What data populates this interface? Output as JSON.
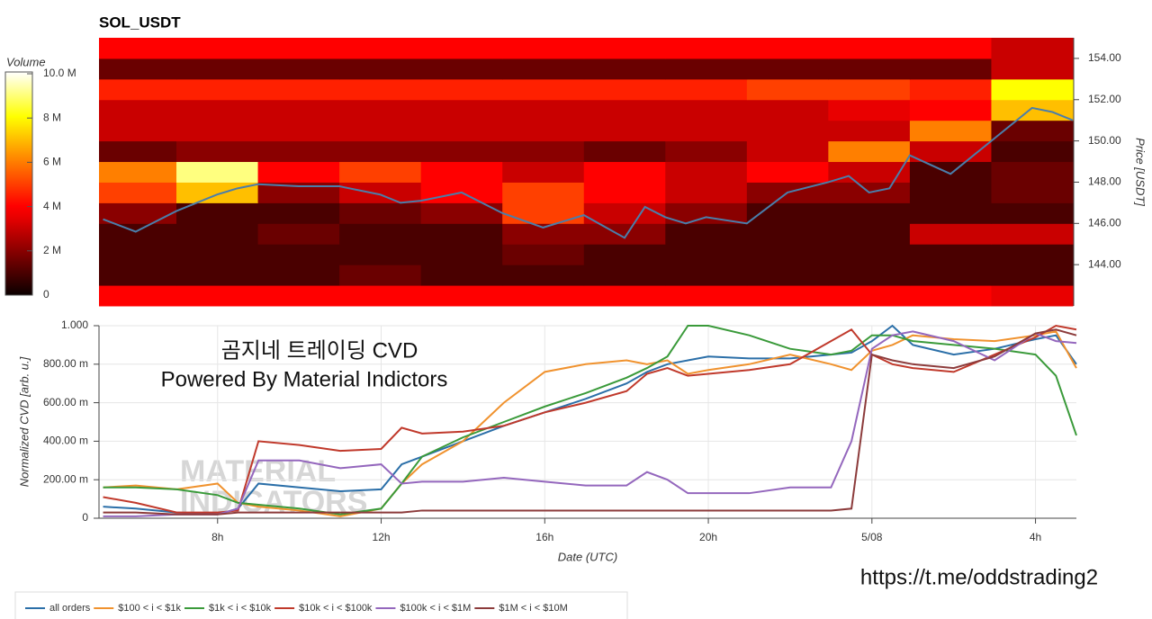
{
  "chart_data": [
    {
      "type": "heatmap",
      "title": "SOL_USDT",
      "y_label": "Price [USDT]",
      "colorbar_title": "Volume",
      "xlim": [
        5.1,
        29
      ],
      "ylim": [
        142,
        155
      ],
      "yticks": [
        {
          "value": 144,
          "label": "144.00"
        },
        {
          "value": 146,
          "label": "146.00"
        },
        {
          "value": 148,
          "label": "148.00"
        },
        {
          "value": 150,
          "label": "150.00"
        },
        {
          "value": 152,
          "label": "152.00"
        },
        {
          "value": 154,
          "label": "154.00"
        }
      ],
      "time_bins": [
        5.1,
        7,
        9,
        11,
        13,
        15,
        17,
        19,
        21,
        23,
        25,
        27,
        29
      ],
      "price_bins": [
        142,
        143,
        144,
        145,
        146,
        147,
        148,
        149,
        150,
        151,
        152,
        153,
        154,
        155
      ],
      "values": [
        [
          4,
          4,
          4,
          4,
          4,
          4,
          4,
          4,
          4,
          4,
          4,
          3.5
        ],
        [
          1,
          1,
          1,
          1.5,
          1,
          1,
          1,
          1,
          1,
          1,
          1,
          1
        ],
        [
          1,
          1,
          1,
          1,
          1,
          1.5,
          1,
          1,
          1,
          1,
          1,
          1
        ],
        [
          1,
          1,
          1.5,
          1,
          1,
          2,
          2,
          1,
          1,
          1,
          3,
          3
        ],
        [
          2,
          1,
          1,
          1.5,
          2,
          5,
          3,
          2,
          1,
          1,
          1,
          1
        ],
        [
          5,
          7,
          2,
          3,
          4,
          5,
          4,
          3,
          2,
          2,
          1,
          1.5
        ],
        [
          6,
          9,
          4,
          5,
          4,
          3,
          4,
          3,
          4,
          3,
          1,
          1.5
        ],
        [
          1.5,
          2,
          2,
          2,
          2,
          2,
          1.5,
          2,
          3,
          6,
          3,
          1
        ],
        [
          3,
          3,
          3,
          3,
          3,
          3,
          3,
          3,
          3,
          3,
          6,
          1.5
        ],
        [
          3,
          3,
          3,
          3,
          3,
          3,
          3,
          3,
          3,
          3.5,
          4,
          7
        ],
        [
          4.5,
          4.5,
          4.5,
          4.5,
          4.5,
          4.5,
          4.5,
          4.5,
          5,
          5,
          4.5,
          8
        ],
        [
          1.5,
          1.5,
          1.5,
          1.5,
          1.5,
          1.5,
          1.5,
          1.5,
          1.5,
          1.5,
          1.5,
          3
        ],
        [
          4,
          4,
          4,
          4,
          4,
          4,
          4,
          4,
          4,
          4,
          4,
          3
        ]
      ],
      "colorbar_lim": [
        0,
        10
      ],
      "colorbar_ticks": [
        0,
        {
          "value": 2,
          "label": "2 M"
        },
        {
          "value": 4,
          "label": "4 M"
        },
        {
          "value": 6,
          "label": "6 M"
        },
        {
          "value": 8,
          "label": "8 M"
        },
        {
          "value": 10,
          "label": "10.0 M"
        }
      ],
      "price_line": {
        "color": "#4a7eaa",
        "x": [
          5.2,
          6,
          7,
          8,
          8.5,
          9,
          10,
          11,
          12,
          12.5,
          13,
          14,
          15,
          16,
          17,
          18,
          18.5,
          19,
          19.5,
          20,
          21,
          22,
          23,
          23.5,
          24,
          24.5,
          25,
          26,
          27,
          28,
          28.5,
          29
        ],
        "values": [
          146.2,
          145.6,
          146.6,
          147.4,
          147.7,
          147.9,
          147.8,
          147.8,
          147.4,
          147.0,
          147.1,
          147.5,
          146.5,
          145.8,
          146.4,
          145.3,
          146.8,
          146.3,
          146.0,
          146.3,
          146.0,
          147.5,
          148.0,
          148.3,
          147.5,
          147.7,
          149.3,
          148.4,
          150.0,
          151.6,
          151.4,
          151.0
        ]
      }
    },
    {
      "type": "line",
      "x_label": "Date (UTC)",
      "y_label": "Normalized CVD [arb. u.]",
      "xlim": [
        5.1,
        29
      ],
      "ylim": [
        0,
        1
      ],
      "grid": true,
      "xticks": [
        {
          "value": 8,
          "label": "8h"
        },
        {
          "value": 12,
          "label": "12h"
        },
        {
          "value": 16,
          "label": "16h"
        },
        {
          "value": 20,
          "label": "20h"
        },
        {
          "value": 24,
          "label": "5/08"
        },
        {
          "value": 28,
          "label": "4h"
        }
      ],
      "yticks": [
        0,
        {
          "value": 0.2,
          "label": "200.00 m"
        },
        {
          "value": 0.4,
          "label": "400.00 m"
        },
        {
          "value": 0.6,
          "label": "600.00 m"
        },
        {
          "value": 0.8,
          "label": "800.00 m"
        },
        {
          "value": 1,
          "label": "1.000"
        }
      ],
      "x": [
        5.2,
        6,
        7,
        8,
        8.5,
        9,
        10,
        11,
        12,
        12.5,
        13,
        14,
        15,
        16,
        17,
        18,
        18.5,
        19,
        19.5,
        20,
        21,
        22,
        23,
        23.5,
        24,
        24.5,
        25,
        26,
        27,
        28,
        28.5,
        29
      ],
      "series": [
        {
          "name": "all orders",
          "color": "#2b6fa8",
          "values": [
            0.06,
            0.05,
            0.03,
            0.02,
            0.05,
            0.18,
            0.16,
            0.14,
            0.15,
            0.28,
            0.32,
            0.4,
            0.48,
            0.55,
            0.62,
            0.7,
            0.76,
            0.8,
            0.82,
            0.84,
            0.83,
            0.83,
            0.85,
            0.86,
            0.92,
            1.0,
            0.9,
            0.85,
            0.88,
            0.93,
            0.95,
            0.8
          ]
        },
        {
          "name": "$100 < i < $1k",
          "color": "#f0922e",
          "values": [
            0.16,
            0.17,
            0.15,
            0.18,
            0.08,
            0.06,
            0.04,
            0.01,
            0.05,
            0.18,
            0.28,
            0.4,
            0.6,
            0.76,
            0.8,
            0.82,
            0.8,
            0.82,
            0.75,
            0.77,
            0.8,
            0.85,
            0.8,
            0.77,
            0.87,
            0.9,
            0.95,
            0.93,
            0.92,
            0.95,
            0.97,
            0.78
          ]
        },
        {
          "name": "$1k < i < $10k",
          "color": "#3a9a3a",
          "values": [
            0.16,
            0.16,
            0.15,
            0.12,
            0.08,
            0.07,
            0.05,
            0.02,
            0.05,
            0.18,
            0.32,
            0.42,
            0.5,
            0.58,
            0.65,
            0.73,
            0.78,
            0.84,
            1.0,
            1.0,
            0.95,
            0.88,
            0.85,
            0.87,
            0.95,
            0.95,
            0.92,
            0.9,
            0.88,
            0.85,
            0.74,
            0.43
          ]
        },
        {
          "name": "$10k < i < $100k",
          "color": "#c0392b",
          "values": [
            0.11,
            0.08,
            0.03,
            0.03,
            0.04,
            0.4,
            0.38,
            0.35,
            0.36,
            0.47,
            0.44,
            0.45,
            0.48,
            0.55,
            0.6,
            0.66,
            0.75,
            0.78,
            0.74,
            0.75,
            0.77,
            0.8,
            0.92,
            0.98,
            0.85,
            0.8,
            0.78,
            0.76,
            0.85,
            0.94,
            1.0,
            0.98
          ]
        },
        {
          "name": "$100k < i < $1M",
          "color": "#9467bd",
          "values": [
            0.01,
            0.01,
            0.02,
            0.02,
            0.05,
            0.3,
            0.3,
            0.26,
            0.28,
            0.18,
            0.19,
            0.19,
            0.21,
            0.19,
            0.17,
            0.17,
            0.24,
            0.2,
            0.13,
            0.13,
            0.13,
            0.16,
            0.16,
            0.4,
            0.88,
            0.95,
            0.97,
            0.92,
            0.82,
            0.96,
            0.92,
            0.91
          ]
        },
        {
          "name": "$1M < i < $10M",
          "color": "#8c3b3b",
          "values": [
            0.03,
            0.03,
            0.02,
            0.02,
            0.03,
            0.03,
            0.03,
            0.03,
            0.03,
            0.03,
            0.04,
            0.04,
            0.04,
            0.04,
            0.04,
            0.04,
            0.04,
            0.04,
            0.04,
            0.04,
            0.04,
            0.04,
            0.04,
            0.05,
            0.85,
            0.82,
            0.8,
            0.78,
            0.84,
            0.96,
            0.98,
            0.95
          ]
        }
      ],
      "annotations": [
        "곰지네 트레이딩 CVD",
        "Powered By Material Indictors"
      ],
      "watermark": [
        "MATERIAL",
        "INDICATORS"
      ],
      "url": "https://t.me/oddstrading2"
    }
  ]
}
